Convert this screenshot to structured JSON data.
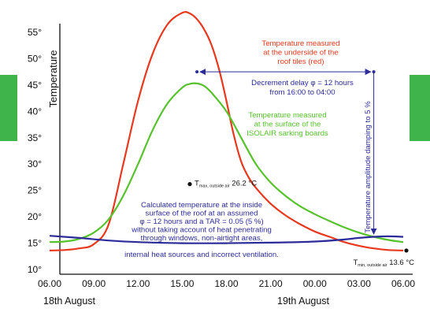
{
  "chart_data": {
    "type": "line",
    "ylabel": "Temperature",
    "y_ticks": [
      "10°",
      "15°",
      "20°",
      "25°",
      "30°",
      "35°",
      "40°",
      "45°",
      "50°",
      "55°"
    ],
    "ylim": [
      10,
      57
    ],
    "x_ticks": [
      "06.00",
      "09.00",
      "12.00",
      "15.00",
      "18.00",
      "21.00",
      "00.00",
      "03.00",
      "06.00"
    ],
    "x_tick_hours": [
      6,
      9,
      12,
      15,
      18,
      21,
      24,
      27,
      30
    ],
    "xlim": [
      6,
      30
    ],
    "dates": [
      "18th August",
      "19th August"
    ],
    "grid": false,
    "legend": "none",
    "series": [
      {
        "key": "red",
        "color": "#e8391e",
        "x": [
          6,
          7,
          8,
          9,
          10,
          11,
          12,
          13,
          14,
          15,
          15.5,
          16,
          16.5,
          17,
          17.5,
          18,
          18.5,
          19,
          19.5,
          20,
          21,
          22,
          23,
          24,
          25,
          26,
          27,
          28,
          29,
          30
        ],
        "y": [
          13.6,
          13.7,
          14.0,
          14.8,
          18.5,
          30,
          42,
          51,
          56.5,
          58.7,
          58.6,
          57.5,
          55.5,
          52.5,
          48,
          42,
          35.5,
          30.5,
          27.5,
          25.5,
          22.5,
          20.3,
          18.6,
          17.2,
          16.2,
          15.2,
          14.5,
          14.0,
          13.7,
          13.6
        ]
      },
      {
        "key": "green",
        "color": "#56c22c",
        "x": [
          6,
          7,
          8,
          9,
          10,
          11,
          12,
          13,
          14,
          15,
          15.5,
          16,
          16.5,
          17,
          18,
          19,
          20,
          21,
          22,
          23,
          24,
          25,
          26,
          27,
          28,
          29,
          30
        ],
        "y": [
          15.2,
          15.3,
          15.8,
          17.0,
          19.5,
          24,
          30,
          36.5,
          41.5,
          44.5,
          45.2,
          45.3,
          44.8,
          43.5,
          40,
          35,
          30,
          26.5,
          24,
          22,
          20.5,
          19.2,
          18,
          17,
          16.2,
          15.6,
          15.2
        ]
      },
      {
        "key": "blue",
        "color": "#2b2b9a",
        "x": [
          6,
          8,
          10,
          12,
          15,
          18,
          21,
          24,
          26,
          27,
          28,
          29,
          30
        ],
        "y": [
          16.4,
          16.0,
          15.5,
          15.2,
          15.0,
          15.0,
          15.1,
          15.3,
          15.7,
          16.0,
          16.2,
          16.3,
          16.2
        ]
      }
    ],
    "points": [
      {
        "x": 15,
        "y": 26.2,
        "label": "T",
        "sub": "max, outside air",
        "value": "26.2 °C"
      },
      {
        "x": 30,
        "y": 13.6,
        "label": "T",
        "sub": "min, outside air",
        "value": "13.6 °C"
      }
    ],
    "annotations": {
      "red_label": [
        "Temperature measured",
        "at the underside of the",
        "roof tiles (red)"
      ],
      "green_label": [
        "Temperature measured",
        "at the surface of the",
        "ISOLAIR sarking boards"
      ],
      "delay_label": [
        "Decrement delay φ = 12 hours",
        "from 16:00 to 04:00"
      ],
      "damping_label": "Temperature amplitude damping to 5 %",
      "blue_label": [
        "Calculated temperature at the inside",
        "surface of the roof at an assumed",
        "φ = 12 hours and a TAR = 0.05 (5 %)",
        "without taking account of heat penetrating",
        "through windows, non-airtight areas,",
        "",
        "internal heat sources and incorrect ventilation."
      ]
    },
    "delay_arrow": {
      "from_hour": 16,
      "to_hour": 28,
      "at_temp": 47.5
    },
    "damping_arrow": {
      "hour": 28,
      "from_temp": 47.5,
      "to_temp": 16.3
    },
    "colors": {
      "red": "#e8391e",
      "green": "#56c22c",
      "blue": "#2b2b9a",
      "side_tab": "#3fb44a"
    }
  }
}
